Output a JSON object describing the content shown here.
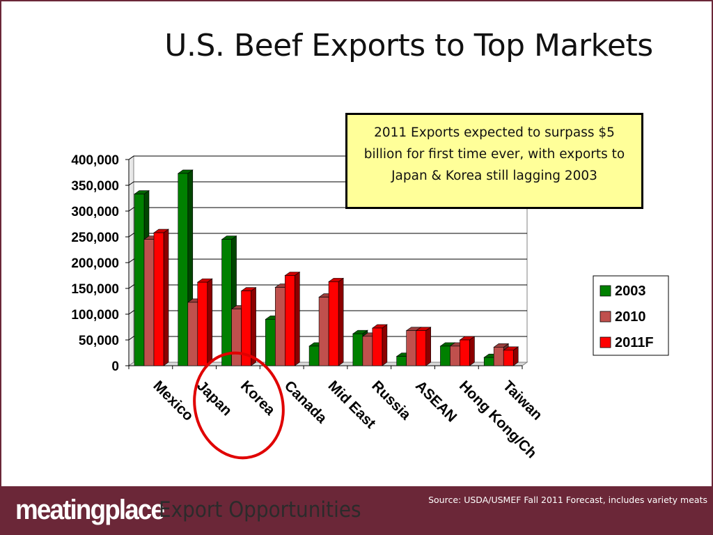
{
  "slide": {
    "title": "U.S. Beef Exports to Top Markets",
    "callout": "2011 Exports expected to surpass $5 billion for first time ever, with exports to Japan & Korea still lagging 2003",
    "footer": {
      "brand": "meatingplace",
      "section": "Export Opportunities",
      "source": "Source: USDA/USMEF Fall 2011 Forecast, includes variety meats"
    }
  },
  "chart_data": {
    "type": "bar",
    "style": "3d-clustered-column",
    "categories": [
      "Mexico",
      "Japan",
      "Korea",
      "Canada",
      "Mid East",
      "Russia",
      "ASEAN",
      "Hong Kong/Ch",
      "Taiwan"
    ],
    "series": [
      {
        "name": "2003",
        "color": "#008000",
        "values": [
          333000,
          373000,
          245000,
          90000,
          38000,
          62000,
          18000,
          38000,
          16000
        ]
      },
      {
        "name": "2010",
        "color": "#c0504d",
        "values": [
          245000,
          123000,
          110000,
          152000,
          133000,
          57000,
          68000,
          38000,
          36000
        ]
      },
      {
        "name": "2011F",
        "color": "#ff0000",
        "values": [
          258000,
          162000,
          145000,
          175000,
          163000,
          73000,
          68000,
          50000,
          30000
        ]
      }
    ],
    "ylim": [
      0,
      400000
    ],
    "yticks": [
      "400,000",
      "350,000",
      "300,000",
      "250,000",
      "200,000",
      "150,000",
      "100,000",
      "50,000",
      "0"
    ],
    "grid": true,
    "legend_position": "right",
    "highlight": {
      "shape": "ellipse",
      "color": "#e00000",
      "categories": [
        "Japan",
        "Korea"
      ]
    }
  }
}
